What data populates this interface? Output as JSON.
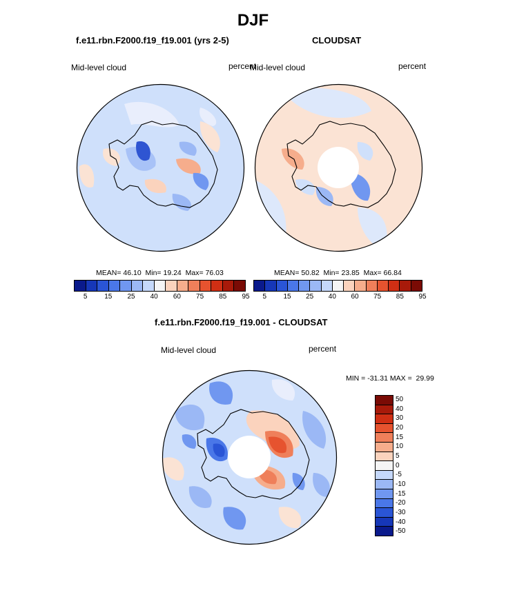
{
  "page": {
    "title": "DJF"
  },
  "panels": {
    "left": {
      "title": "f.e11.rbn.F2000.f19_f19.001 (yrs 2-5)",
      "variable": "Mid-level cloud",
      "units": "percent",
      "stats": {
        "mean_label": "MEAN=",
        "mean": "46.10",
        "min_label": "Min=",
        "min": "19.24",
        "max_label": "Max=",
        "max": "76.03"
      }
    },
    "right": {
      "title": "CLOUDSAT",
      "variable": "Mid-level cloud",
      "units": "percent",
      "stats": {
        "mean_label": "MEAN=",
        "mean": "50.82",
        "min_label": "Min=",
        "min": "23.85",
        "max_label": "Max=",
        "max": "66.84"
      }
    },
    "diff": {
      "title": "f.e11.rbn.F2000.f19_f19.001 - CLOUDSAT",
      "variable": "Mid-level cloud",
      "units": "percent",
      "minmax_text": "MIN = -31.31 MAX =  29.99"
    }
  },
  "colorbars": {
    "abs": {
      "colors": [
        "#0a1a8c",
        "#1637b8",
        "#2a55d6",
        "#4a77e8",
        "#7097f0",
        "#9bb8f5",
        "#c5d8fa",
        "#f5f5f5",
        "#fbd3bd",
        "#f6ad8c",
        "#ef7f5a",
        "#e6532f",
        "#d02f14",
        "#a81a0a",
        "#7a0b05"
      ],
      "ticks": [
        "5",
        "15",
        "25",
        "40",
        "60",
        "75",
        "85",
        "95"
      ]
    },
    "diff": {
      "colors": [
        "#7a0b05",
        "#a81a0a",
        "#d02f14",
        "#e6532f",
        "#ef7f5a",
        "#f6ad8c",
        "#fbd3bd",
        "#f5f5f5",
        "#c5d8fa",
        "#9bb8f5",
        "#7097f0",
        "#4a77e8",
        "#2a55d6",
        "#1637b8",
        "#0a1a8c"
      ],
      "ticks": [
        "50",
        "40",
        "30",
        "20",
        "15",
        "10",
        "5",
        "0",
        "-5",
        "-10",
        "-15",
        "-20",
        "-30",
        "-40",
        "-50"
      ]
    }
  }
}
